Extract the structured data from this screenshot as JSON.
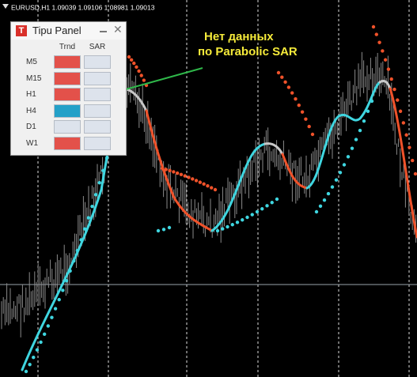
{
  "header": {
    "text": "EURUSD,H1  1.09039 1.09106 1.08981 1.09013"
  },
  "panel": {
    "title": "Tipu Panel",
    "columns": [
      "Trnd",
      "SAR"
    ],
    "rows": [
      {
        "label": "M5",
        "trnd_color": "#e3514a",
        "sar_color": "#dde3ec"
      },
      {
        "label": "M15",
        "trnd_color": "#e3514a",
        "sar_color": "#dde3ec"
      },
      {
        "label": "H1",
        "trnd_color": "#e3514a",
        "sar_color": "#dde3ec"
      },
      {
        "label": "H4",
        "trnd_color": "#23a0c8",
        "sar_color": "#dde3ec"
      },
      {
        "label": "D1",
        "trnd_color": "#dde3ec",
        "sar_color": "#dde3ec"
      },
      {
        "label": "W1",
        "trnd_color": "#e3514a",
        "sar_color": "#dde3ec"
      }
    ]
  },
  "annotation": {
    "lines": [
      "Нет данных",
      "по Parabolic SAR"
    ]
  }
}
